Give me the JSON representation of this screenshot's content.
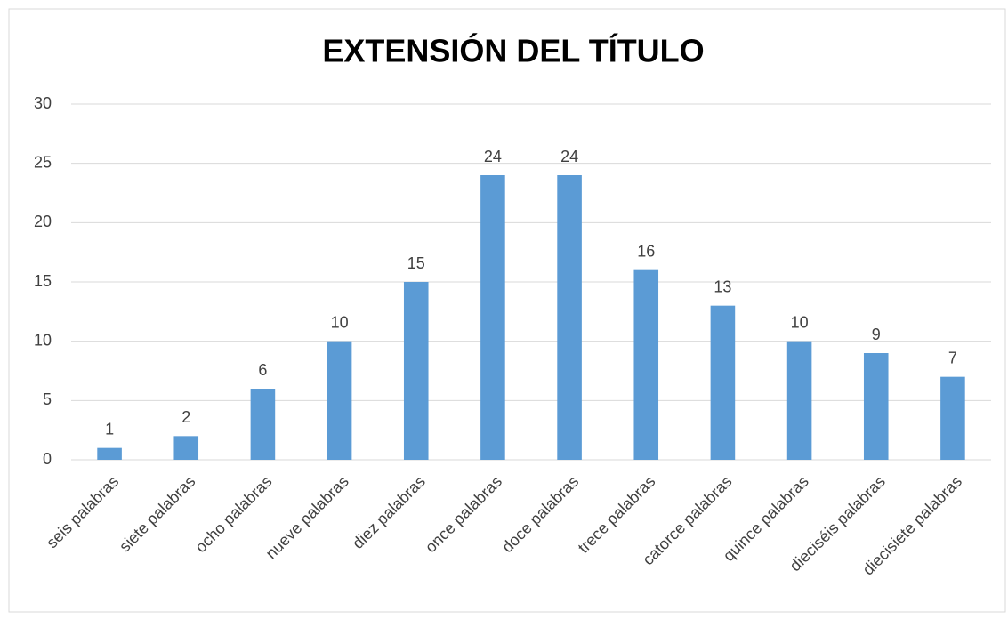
{
  "chart_data": {
    "type": "bar",
    "title": "EXTENSIÓN DEL TÍTULO",
    "categories": [
      "seis palabras",
      "siete palabras",
      "ocho palabras",
      "nueve palabras",
      "diez palabras",
      "once palabras",
      "doce palabras",
      "trece palabras",
      "catorce palabras",
      "quince palabras",
      "dieciséis palabras",
      "diecisiete palabras"
    ],
    "values": [
      1,
      2,
      6,
      10,
      15,
      24,
      24,
      16,
      13,
      10,
      9,
      7
    ],
    "color": "#5b9bd5",
    "ylim": [
      0,
      30
    ],
    "yticks": [
      0,
      5,
      10,
      15,
      20,
      25,
      30
    ],
    "grid": true
  }
}
